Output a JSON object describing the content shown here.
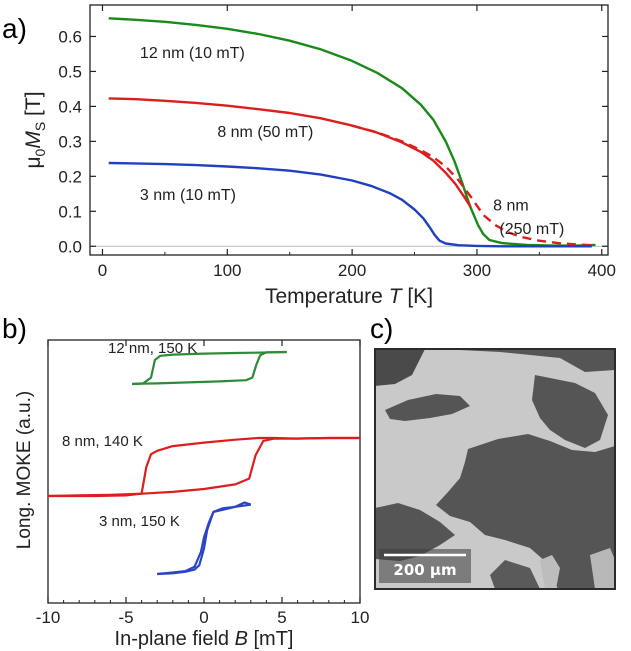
{
  "panels": [
    {
      "letter": "a)"
    },
    {
      "letter": "b)"
    },
    {
      "letter": "c)"
    }
  ],
  "chart_data": [
    {
      "panel": "a)",
      "type": "line",
      "xlabel_prefix": "Temperature ",
      "xlabel_var": "T",
      "xlabel_unit": " [K]",
      "ylabel_prefix": "μ",
      "ylabel_sub0": "0",
      "ylabel_var": "M",
      "ylabel_sub": "S",
      "ylabel_unit": " [T]",
      "xlim": [
        -10,
        405
      ],
      "ylim": [
        -0.025,
        0.69
      ],
      "xticks": [
        0,
        100,
        200,
        300,
        400
      ],
      "xtick_labels": [
        "0",
        "100",
        "200",
        "300",
        "400"
      ],
      "yticks": [
        0.0,
        0.1,
        0.2,
        0.3,
        0.4,
        0.5,
        0.6
      ],
      "ytick_labels": [
        "0.0",
        "0.1",
        "0.2",
        "0.3",
        "0.4",
        "0.5",
        "0.6"
      ],
      "grid": false,
      "series": [
        {
          "name": "12 nm (10 mT)",
          "color": "#1a8a1a",
          "dash": false,
          "x": [
            5,
            25,
            50,
            75,
            100,
            125,
            150,
            175,
            200,
            220,
            240,
            255,
            265,
            275,
            282,
            288,
            292,
            295,
            298,
            301,
            305,
            310,
            320,
            340,
            360,
            380,
            395
          ],
          "y": [
            0.652,
            0.648,
            0.642,
            0.633,
            0.622,
            0.607,
            0.588,
            0.563,
            0.53,
            0.496,
            0.452,
            0.405,
            0.362,
            0.3,
            0.243,
            0.183,
            0.14,
            0.11,
            0.085,
            0.06,
            0.035,
            0.018,
            0.009,
            0.004,
            0.002,
            0.002,
            0.004
          ]
        },
        {
          "name": "8 nm (50 mT)",
          "color": "#dd1e1e",
          "dash": false,
          "x": [
            5,
            25,
            50,
            75,
            100,
            125,
            150,
            175,
            200,
            220,
            240,
            255,
            265,
            275,
            283,
            290,
            295
          ],
          "y": [
            0.423,
            0.421,
            0.416,
            0.41,
            0.402,
            0.392,
            0.381,
            0.366,
            0.345,
            0.325,
            0.297,
            0.27,
            0.245,
            0.21,
            0.177,
            0.14,
            0.112
          ]
        },
        {
          "name": "8 nm\n(250 mT)",
          "color": "#dd1e1e",
          "dash": true,
          "x": [
            200,
            220,
            240,
            255,
            265,
            275,
            285,
            295,
            305,
            315,
            325,
            335,
            350,
            365,
            380,
            392
          ],
          "y": [
            0.345,
            0.326,
            0.3,
            0.275,
            0.255,
            0.228,
            0.19,
            0.142,
            0.09,
            0.06,
            0.04,
            0.027,
            0.016,
            0.009,
            0.005,
            0.003
          ]
        },
        {
          "name": "3 nm (10 mT)",
          "color": "#2040c0",
          "dash": false,
          "x": [
            5,
            25,
            50,
            75,
            100,
            125,
            150,
            175,
            200,
            215,
            230,
            240,
            250,
            257,
            262,
            266,
            270,
            275,
            285,
            300,
            320,
            350,
            380,
            392
          ],
          "y": [
            0.238,
            0.237,
            0.235,
            0.232,
            0.228,
            0.223,
            0.216,
            0.205,
            0.188,
            0.173,
            0.152,
            0.133,
            0.105,
            0.08,
            0.055,
            0.033,
            0.016,
            0.008,
            0.003,
            0.001,
            0.0,
            0.0,
            0.0,
            0.0
          ]
        }
      ],
      "annotations": [
        {
          "text": "12 nm (10 mT)",
          "x": 30,
          "y": 0.555,
          "color": "#1a8a1a"
        },
        {
          "text": "8 nm (50 mT)",
          "x": 92,
          "y": 0.33,
          "color": "#dd1e1e"
        },
        {
          "text": "3 nm (10 mT)",
          "x": 30,
          "y": 0.15,
          "color": "#2040c0"
        },
        {
          "text": "8 nm",
          "x": 313,
          "y": 0.12,
          "color": "#dd1e1e"
        },
        {
          "text": "(250 mT)",
          "x": 318,
          "y": 0.052,
          "color": "#dd1e1e"
        }
      ]
    },
    {
      "panel": "b)",
      "type": "line",
      "xlabel_prefix": "In-plane field ",
      "xlabel_var": "B",
      "xlabel_unit": " [mT]",
      "ylabel": "Long. MOKE (a.u.)",
      "xlim": [
        -10,
        10
      ],
      "xticks": [
        -10,
        -5,
        0,
        5,
        10
      ],
      "xtick_labels": [
        "-10",
        "-5",
        "0",
        "5",
        "10"
      ],
      "y_ticks_shown": false,
      "grid": false,
      "series": [
        {
          "name": "12 nm, 150 K",
          "color": "#2e8b3a",
          "loops": [
            {
              "x": [
                -4.6,
                -3.9,
                -3.4,
                -3.15,
                -2.8,
                -2.0,
                0.0,
                2.0,
                3.6,
                4.5,
                5.3
              ],
              "y": [
                0.0,
                0.02,
                0.2,
                0.75,
                0.88,
                0.92,
                0.95,
                0.97,
                0.98,
                0.99,
                1.0
              ]
            },
            {
              "x": [
                5.3,
                4.0,
                3.6,
                3.35,
                3.1,
                2.7,
                1.0,
                -1.0,
                -3.0,
                -4.0,
                -4.6
              ],
              "y": [
                1.0,
                0.99,
                0.9,
                0.6,
                0.2,
                0.12,
                0.08,
                0.05,
                0.02,
                0.01,
                0.0
              ]
            }
          ]
        },
        {
          "name": "8 nm, 140 K",
          "color": "#dd1e1e",
          "loops": [
            {
              "x": [
                -10.0,
                -7.0,
                -5.0,
                -4.0,
                -3.7,
                -3.4,
                -3.0,
                -2.0,
                0.0,
                2.0,
                3.5,
                4.5,
                6.0,
                8.0,
                10.0
              ],
              "y": [
                0.0,
                0.0,
                0.01,
                0.04,
                0.5,
                0.72,
                0.78,
                0.86,
                0.92,
                0.97,
                1.0,
                1.0,
                0.99,
                1.0,
                1.0
              ]
            },
            {
              "x": [
                10.0,
                8.0,
                5.5,
                4.5,
                3.8,
                3.3,
                2.9,
                2.0,
                0.0,
                -2.0,
                -4.0,
                -6.0,
                -8.0,
                -10.0
              ],
              "y": [
                1.0,
                1.0,
                0.99,
                0.99,
                0.95,
                0.7,
                0.3,
                0.2,
                0.12,
                0.07,
                0.04,
                0.02,
                0.01,
                0.0
              ]
            }
          ]
        },
        {
          "name": "3 nm, 150 K",
          "color": "#2a44c4",
          "loops": [
            {
              "x": [
                -3.0,
                -2.0,
                -1.2,
                -0.6,
                -0.2,
                0.0,
                0.3,
                0.6,
                1.2,
                2.0,
                2.6,
                3.0
              ],
              "y": [
                0.0,
                0.02,
                0.04,
                0.1,
                0.3,
                0.5,
                0.7,
                0.85,
                0.88,
                0.92,
                0.98,
                0.95
              ]
            },
            {
              "x": [
                3.0,
                2.0,
                1.2,
                0.6,
                0.2,
                0.0,
                -0.3,
                -0.6,
                -1.2,
                -2.0,
                -3.0
              ],
              "y": [
                0.95,
                0.92,
                0.9,
                0.85,
                0.6,
                0.35,
                0.12,
                0.06,
                0.03,
                0.01,
                0.0
              ]
            }
          ]
        }
      ],
      "annotations": [
        {
          "text": "12 nm, 150 K",
          "color": "#2e8b3a"
        },
        {
          "text": "8 nm, 140 K",
          "color": "#dd1e1e"
        },
        {
          "text": "3 nm, 150 K",
          "color": "#2a44c4"
        }
      ]
    }
  ],
  "micrograph": {
    "scale_bar_label": "200 μm",
    "light_color": "#c9c9c9",
    "dark_color": "#555555",
    "border_color": "#2b2b2b"
  }
}
